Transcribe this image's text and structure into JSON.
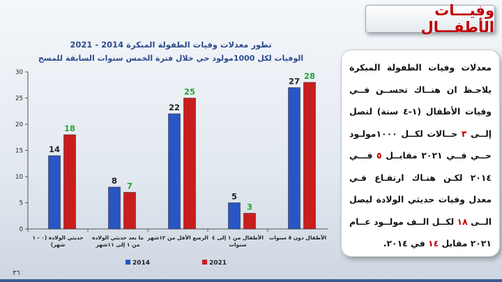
{
  "header": {
    "title": "وفيـــات الأطفـــال"
  },
  "chart_data": {
    "type": "bar",
    "title": "تطور معدلات وفيات الطفولة المبكرة 2014 - 2021",
    "subtitle": "الوفيات لكل 1000مولود حي خلال فترة الخمس سنوات السابقة للمسح",
    "categories": [
      "حديثي الولادة (٠ - ١ شهر)",
      "ما بعد حديثي الولادة من ١ إلى ١١شهر",
      "الرضع الأقل من ١٢شهر",
      "الأطفال من ١ إلى ٤ سنوات",
      "الأطفال دون ٥ سنوات"
    ],
    "series": [
      {
        "name": "2014",
        "values": [
          14,
          8,
          22,
          5,
          27
        ],
        "color": "#2a55c5",
        "label_color": "#222222"
      },
      {
        "name": "2021",
        "values": [
          18,
          7,
          25,
          3,
          28
        ],
        "color": "#c81e1e",
        "label_color": "#2aa33a"
      }
    ],
    "ylim": [
      0,
      30
    ],
    "yticks": [
      0,
      5,
      10,
      15,
      20,
      25,
      30
    ],
    "grid": false,
    "legend_position": "bottom"
  },
  "info": {
    "lines": [
      "معدلات وفيات الطفولة المبكرة",
      "يلاحـظ ان هنــاك تحســن فــي",
      "وفيات الأطفال (١-٤ سنة) لتصل",
      "إلــى ٣ حــالات لكــل ١٠٠٠مولـود",
      "حــي فــي ٢٠٢١ مقابــل ٥ فـــي",
      "٢٠١٤ لكـن هنـاك ارتفـاع فـي",
      "معدل وفيات حديثي الولادة ليصل",
      "الــى ١٨ لكــل الــف مولــود عــام",
      "٢٠٢١ مقابل ١٤ في ٢٠١٤."
    ]
  },
  "page_number": "٣٦"
}
